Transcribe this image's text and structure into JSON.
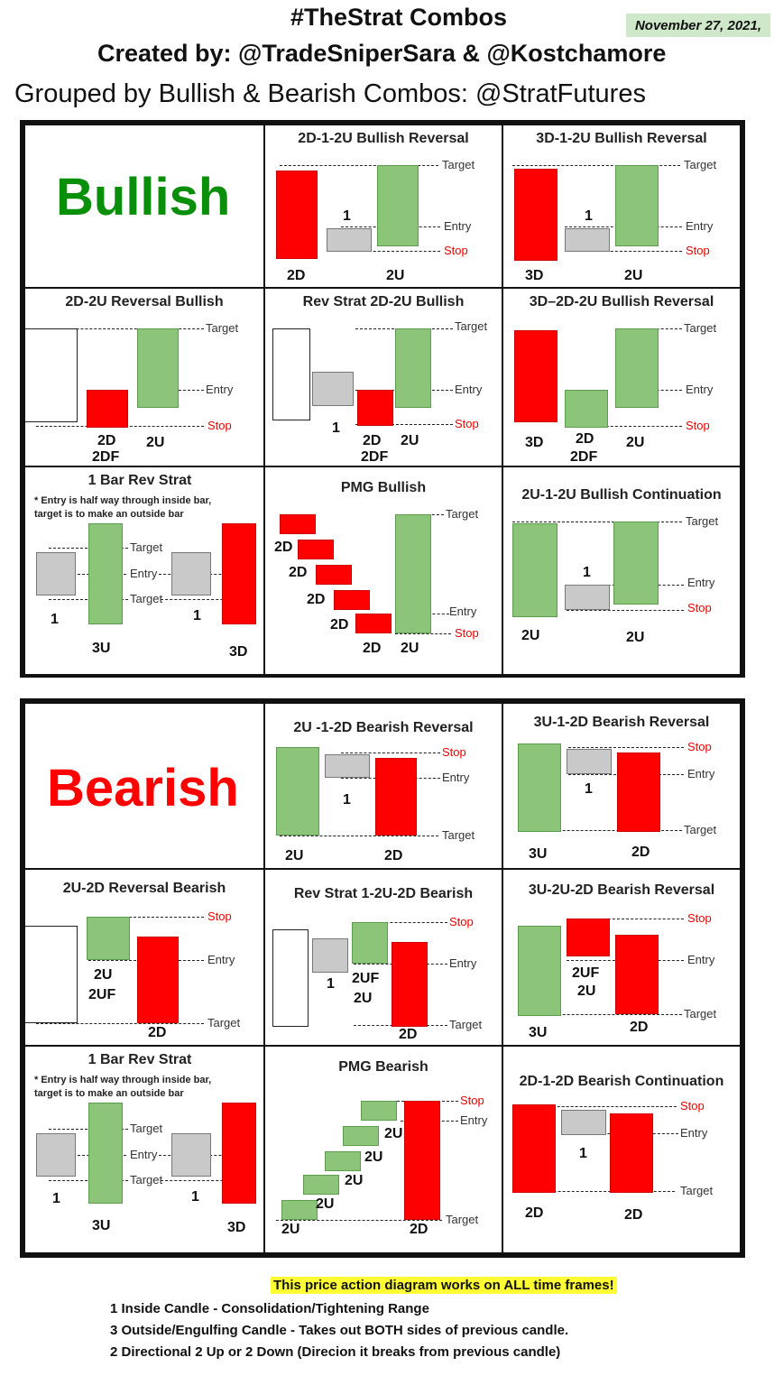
{
  "header": {
    "title": "#TheStrat Combos",
    "credits": "Created by: @TradeSniperSara & @Kostchamore",
    "grouping": "Grouped by Bullish & Bearish Combos: @StratFutures",
    "date": "November 27, 2021,"
  },
  "bullish": {
    "label": "Bullish",
    "cells": [
      {
        "title": "2D-1-2U Bullish Reversal",
        "labels": {
          "target": "Target",
          "entry": "Entry",
          "stop": "Stop"
        },
        "candles": [
          "2D",
          "1",
          "2U"
        ]
      },
      {
        "title": "3D-1-2U Bullish Reversal",
        "labels": {
          "target": "Target",
          "entry": "Entry",
          "stop": "Stop"
        },
        "candles": [
          "3D",
          "1",
          "2U"
        ]
      },
      {
        "title": "2D-2U Reversal Bullish",
        "labels": {
          "target": "Target",
          "entry": "Entry",
          "stop": "Stop"
        },
        "candles": [
          "2D",
          "2DF",
          "2U"
        ]
      },
      {
        "title": "Rev Strat 2D-2U Bullish",
        "labels": {
          "target": "Target",
          "entry": "Entry",
          "stop": "Stop"
        },
        "candles": [
          "1",
          "2D",
          "2DF",
          "2U"
        ]
      },
      {
        "title": "3D–2D-2U Bullish Reversal",
        "labels": {
          "target": "Target",
          "entry": "Entry",
          "stop": "Stop"
        },
        "candles": [
          "3D",
          "2D",
          "2DF",
          "2U"
        ]
      },
      {
        "title": "1 Bar Rev Strat",
        "note": [
          "* Entry is half way through inside bar,",
          "target is to make an outside bar"
        ],
        "labels": {
          "target1": "Target",
          "entry": "Entry",
          "target2": "Target"
        },
        "candles": [
          "1",
          "3U",
          "1",
          "3D"
        ]
      },
      {
        "title": "PMG Bullish",
        "labels": {
          "target": "Target",
          "entry": "Entry",
          "stop": "Stop"
        },
        "candles": [
          "2D",
          "2D",
          "2D",
          "2D",
          "2D",
          "2U"
        ]
      },
      {
        "title": "2U-1-2U Bullish Continuation",
        "labels": {
          "target": "Target",
          "entry": "Entry",
          "stop": "Stop"
        },
        "candles": [
          "2U",
          "1",
          "2U"
        ]
      }
    ]
  },
  "bearish": {
    "label": "Bearish",
    "cells": [
      {
        "title": "2U -1-2D Bearish Reversal",
        "labels": {
          "stop": "Stop",
          "entry": "Entry",
          "target": "Target"
        },
        "candles": [
          "2U",
          "1",
          "2D"
        ]
      },
      {
        "title": "3U-1-2D Bearish Reversal",
        "labels": {
          "stop": "Stop",
          "entry": "Entry",
          "target": "Target"
        },
        "candles": [
          "3U",
          "1",
          "2D"
        ]
      },
      {
        "title": "2U-2D Reversal Bearish",
        "labels": {
          "stop": "Stop",
          "entry": "Entry",
          "target": "Target"
        },
        "candles": [
          "2U",
          "2UF",
          "2D"
        ]
      },
      {
        "title": "Rev Strat 1-2U-2D Bearish",
        "labels": {
          "stop": "Stop",
          "entry": "Entry",
          "target": "Target"
        },
        "candles": [
          "1",
          "2UF",
          "2U",
          "2D"
        ]
      },
      {
        "title": "3U-2U-2D Bearish Reversal",
        "labels": {
          "stop": "Stop",
          "entry": "Entry",
          "target": "Target"
        },
        "candles": [
          "2UF",
          "2U",
          "3U",
          "2D"
        ]
      },
      {
        "title": "1 Bar Rev Strat",
        "note": [
          "* Entry is half way through inside bar,",
          "target is to make an outside bar"
        ],
        "labels": {
          "target1": "Target",
          "entry": "Entry",
          "target2": "Target"
        },
        "candles": [
          "1",
          "3U",
          "1",
          "3D"
        ]
      },
      {
        "title": "PMG Bearish",
        "labels": {
          "stop": "Stop",
          "entry": "Entry",
          "target": "Target"
        },
        "candles": [
          "2U",
          "2U",
          "2U",
          "2U",
          "2U",
          "2D"
        ]
      },
      {
        "title": "2D-1-2D Bearish Continuation",
        "labels": {
          "stop": "Stop",
          "entry": "Entry",
          "target": "Target"
        },
        "candles": [
          "2D",
          "1",
          "2D"
        ]
      }
    ]
  },
  "footer": {
    "highlight": "This price action diagram works on ALL time frames!",
    "lines": [
      "1 Inside Candle - Consolidation/Tightening Range",
      "3 Outside/Engulfing Candle - Takes out BOTH sides of previous candle.",
      "2 Directional 2 Up or 2 Down (Direcion it breaks from previous candle)"
    ]
  },
  "colors": {
    "bear_candle": "#ff0000",
    "bull_candle": "#8cc57a",
    "inside_candle": "#c9c9c9",
    "bullish_label": "#0a8f0a",
    "bearish_label": "#ff0000",
    "stop_label": "#e00000",
    "highlight": "#ffff33"
  }
}
